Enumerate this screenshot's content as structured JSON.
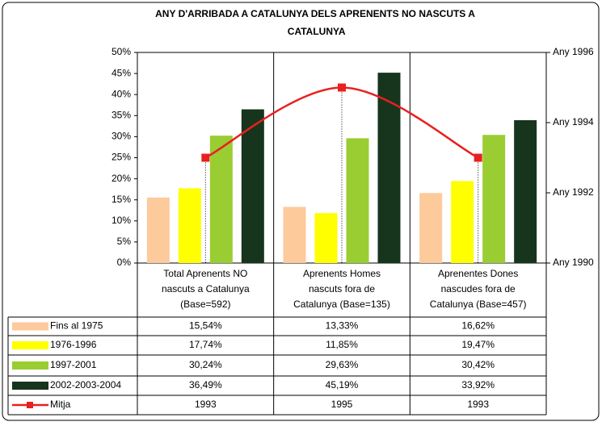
{
  "chart_data": {
    "type": "bar",
    "title": "ANY D'ARRIBADA A CATALUNYA DELS APRENENTS NO NASCUTS A CATALUNYA",
    "categories": [
      "Total Aprenents NO\nnascuts a Catalunya\n(Base=592)",
      "Aprenents Homes\nnascuts fora de\nCatalunya (Base=135)",
      "Aprenentes Dones\nnascudes fora de\nCatalunya (Base=457)"
    ],
    "series": [
      {
        "name": "Fins al 1975",
        "color": "#fdca9c",
        "values": [
          15.54,
          13.33,
          16.62
        ],
        "value_labels": [
          "15,54%",
          "13,33%",
          "16,62%"
        ]
      },
      {
        "name": "1976-1996",
        "color": "#ffff00",
        "values": [
          17.74,
          11.85,
          19.47
        ],
        "value_labels": [
          "17,74%",
          "11,85%",
          "19,47%"
        ]
      },
      {
        "name": "1997-2001",
        "color": "#9acd32",
        "values": [
          30.24,
          29.63,
          30.42
        ],
        "value_labels": [
          "30,24%",
          "29,63%",
          "30,42%"
        ]
      },
      {
        "name": "2002-2003-2004",
        "color": "#16351c",
        "values": [
          36.49,
          45.19,
          33.92
        ],
        "value_labels": [
          "36,49%",
          "45,19%",
          "33,92%"
        ]
      },
      {
        "name": "Mitja",
        "color": "#e8201f",
        "type": "line",
        "axis": "y2",
        "values": [
          1993,
          1995,
          1993
        ]
      }
    ],
    "ylim": [
      0,
      50
    ],
    "yticks": [
      {
        "value": 0,
        "label": "0%"
      },
      {
        "value": 5,
        "label": "5%"
      },
      {
        "value": 10,
        "label": "10%"
      },
      {
        "value": 15,
        "label": "15%"
      },
      {
        "value": 20,
        "label": "20%"
      },
      {
        "value": 25,
        "label": "25%"
      },
      {
        "value": 30,
        "label": "30%"
      },
      {
        "value": 35,
        "label": "35%"
      },
      {
        "value": 40,
        "label": "40%"
      },
      {
        "value": 45,
        "label": "45%"
      },
      {
        "value": 50,
        "label": "50%"
      }
    ],
    "y2lim": [
      1990,
      1996
    ],
    "y2ticks": [
      {
        "value": 1990,
        "label": "Any 1990"
      },
      {
        "value": 1992,
        "label": "Any 1992"
      },
      {
        "value": 1994,
        "label": "Any 1994"
      },
      {
        "value": 1996,
        "label": "Any 1996"
      }
    ]
  }
}
